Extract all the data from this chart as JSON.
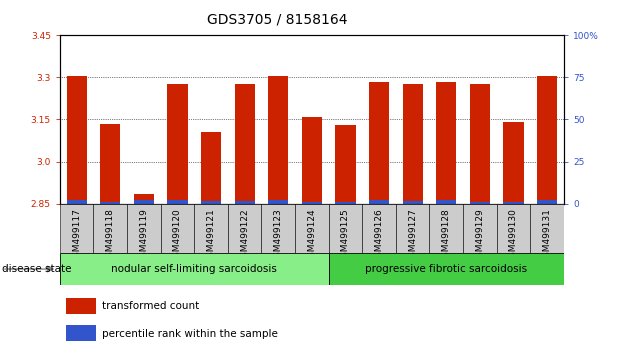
{
  "title": "GDS3705 / 8158164",
  "samples": [
    "GSM499117",
    "GSM499118",
    "GSM499119",
    "GSM499120",
    "GSM499121",
    "GSM499122",
    "GSM499123",
    "GSM499124",
    "GSM499125",
    "GSM499126",
    "GSM499127",
    "GSM499128",
    "GSM499129",
    "GSM499130",
    "GSM499131"
  ],
  "red_values": [
    3.305,
    3.135,
    2.885,
    3.275,
    3.105,
    3.275,
    3.305,
    3.16,
    3.13,
    3.285,
    3.275,
    3.285,
    3.275,
    3.14,
    3.305
  ],
  "blue_values": [
    2.862,
    2.857,
    2.862,
    2.862,
    2.86,
    2.86,
    2.862,
    2.857,
    2.855,
    2.862,
    2.86,
    2.862,
    2.857,
    2.857,
    2.862
  ],
  "ymin": 2.85,
  "ymax": 3.45,
  "yticks_red": [
    2.85,
    3.0,
    3.15,
    3.3,
    3.45
  ],
  "yticks_blue": [
    0,
    25,
    50,
    75,
    100
  ],
  "group1_label": "nodular self-limiting sarcoidosis",
  "group1_count": 8,
  "group2_label": "progressive fibrotic sarcoidosis",
  "group2_count": 7,
  "disease_state_label": "disease state",
  "legend_red": "transformed count",
  "legend_blue": "percentile rank within the sample",
  "red_color": "#cc2200",
  "blue_color": "#3355cc",
  "group1_color": "#88ee88",
  "group2_color": "#44cc44",
  "bar_bg_color": "#cccccc",
  "title_fontsize": 10,
  "tick_fontsize": 6.5,
  "label_fontsize": 8
}
